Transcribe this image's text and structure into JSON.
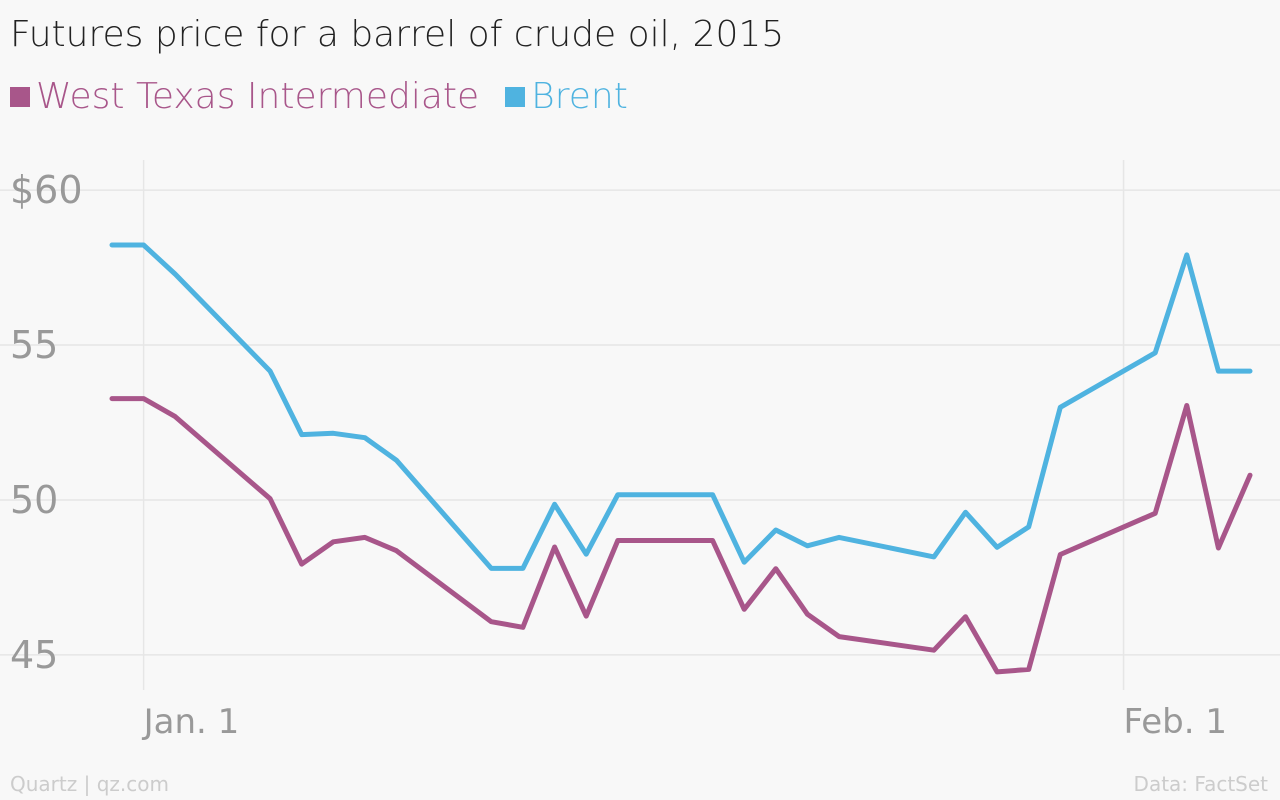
{
  "title": "Futures price for a barrel of crude oil, 2015",
  "source_left": "Quartz | qz.com",
  "source_right": "Data: FactSet",
  "colors": {
    "wti": "#a8568a",
    "brent": "#4fb3e0",
    "grid": "#e6e6e6",
    "tick": "#999999"
  },
  "chart_data": {
    "type": "line",
    "xlabel": "",
    "ylabel": "",
    "ylim": [
      43.8,
      61.2
    ],
    "grid": true,
    "legend_position": "top-left",
    "y_ticks": [
      {
        "value": 60,
        "label": "$60"
      },
      {
        "value": 55,
        "label": "55"
      },
      {
        "value": 50,
        "label": "50"
      },
      {
        "value": 45,
        "label": "45"
      }
    ],
    "x_ticks": [
      {
        "date": "2015-01-01",
        "label": "Jan. 1"
      },
      {
        "date": "2015-02-01",
        "label": "Feb. 1"
      }
    ],
    "x": [
      "2014-12-31",
      "2015-01-01",
      "2015-01-02",
      "2015-01-05",
      "2015-01-06",
      "2015-01-07",
      "2015-01-08",
      "2015-01-09",
      "2015-01-12",
      "2015-01-13",
      "2015-01-14",
      "2015-01-15",
      "2015-01-16",
      "2015-01-19",
      "2015-01-20",
      "2015-01-21",
      "2015-01-22",
      "2015-01-23",
      "2015-01-26",
      "2015-01-27",
      "2015-01-28",
      "2015-01-29",
      "2015-01-30",
      "2015-02-02",
      "2015-02-03",
      "2015-02-04",
      "2015-02-05"
    ],
    "series": [
      {
        "name": "West Texas Intermediate",
        "key": "wti",
        "values": [
          53.27,
          53.27,
          52.69,
          50.04,
          47.93,
          48.65,
          48.79,
          48.36,
          46.07,
          45.89,
          48.48,
          46.25,
          48.69,
          48.69,
          46.47,
          47.78,
          46.31,
          45.59,
          45.15,
          46.23,
          44.45,
          44.53,
          48.24,
          49.57,
          53.05,
          48.45,
          50.8
        ]
      },
      {
        "name": "Brent",
        "key": "brent",
        "values": [
          58.23,
          58.23,
          57.29,
          54.16,
          52.11,
          52.15,
          52.01,
          51.28,
          47.79,
          47.79,
          49.86,
          48.25,
          50.17,
          50.17,
          47.99,
          49.03,
          48.52,
          48.79,
          48.16,
          49.6,
          48.47,
          49.13,
          52.99,
          54.75,
          57.91,
          54.16,
          54.16
        ]
      }
    ]
  }
}
